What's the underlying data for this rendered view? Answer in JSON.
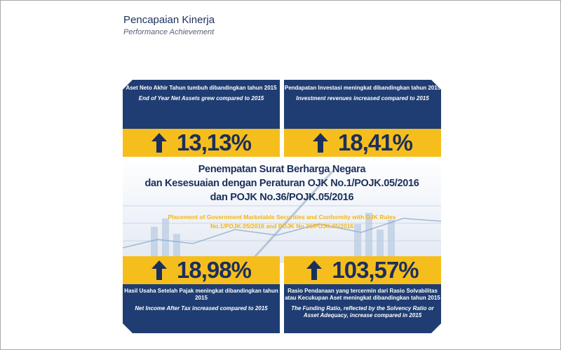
{
  "header": {
    "title": "Pencapaian Kinerja",
    "subtitle": "Performance Achievement"
  },
  "colors": {
    "navy": "#1f3d72",
    "gold": "#f6be1d",
    "title_text": "#1b2f5c"
  },
  "cards": [
    {
      "id_text": "Aset Neto Akhir Tahun tumbuh dibandingkan tahun 2015",
      "en_text": "End of Year Net Assets grew compared to 2015",
      "value": "13,13%",
      "icon": "up-arrow-icon"
    },
    {
      "id_text": "Pendapatan Investasi meningkat dibandingkan tahun 2015",
      "en_text": "Investment revenues increased compared to 2015",
      "value": "18,41%",
      "icon": "up-arrow-icon"
    },
    {
      "id_text": "Hasil Usaha Setelah Pajak meningkat dibandingkan tahun 2015",
      "en_text": "Net Income After Tax increased compared to 2015",
      "value": "18,98%",
      "icon": "up-arrow-icon"
    },
    {
      "id_text": "Rasio Pendanaan yang tercermin dari Rasio Solvabilitas atau Kecukupan Aset meningkat dibandingkan tahun 2015",
      "en_text": "The Funding Ratio, reflected by the Solvency Ratio or Asset Adequacy, increase compared in 2015",
      "value": "103,57%",
      "icon": "up-arrow-icon"
    }
  ],
  "center": {
    "title_line1": "Penempatan Surat Berharga Negara",
    "title_line2": "dan Kesesuaian dengan Peraturan OJK No.1/POJK.05/2016",
    "title_line3": "dan POJK No.36/POJK.05/2016",
    "sub_line1": "Placement of Government Marketable Securities and Conformity with OJK Rules",
    "sub_line2": "No.1/POJK.05/2016 and POJK No.36/POJK.05/2016"
  }
}
